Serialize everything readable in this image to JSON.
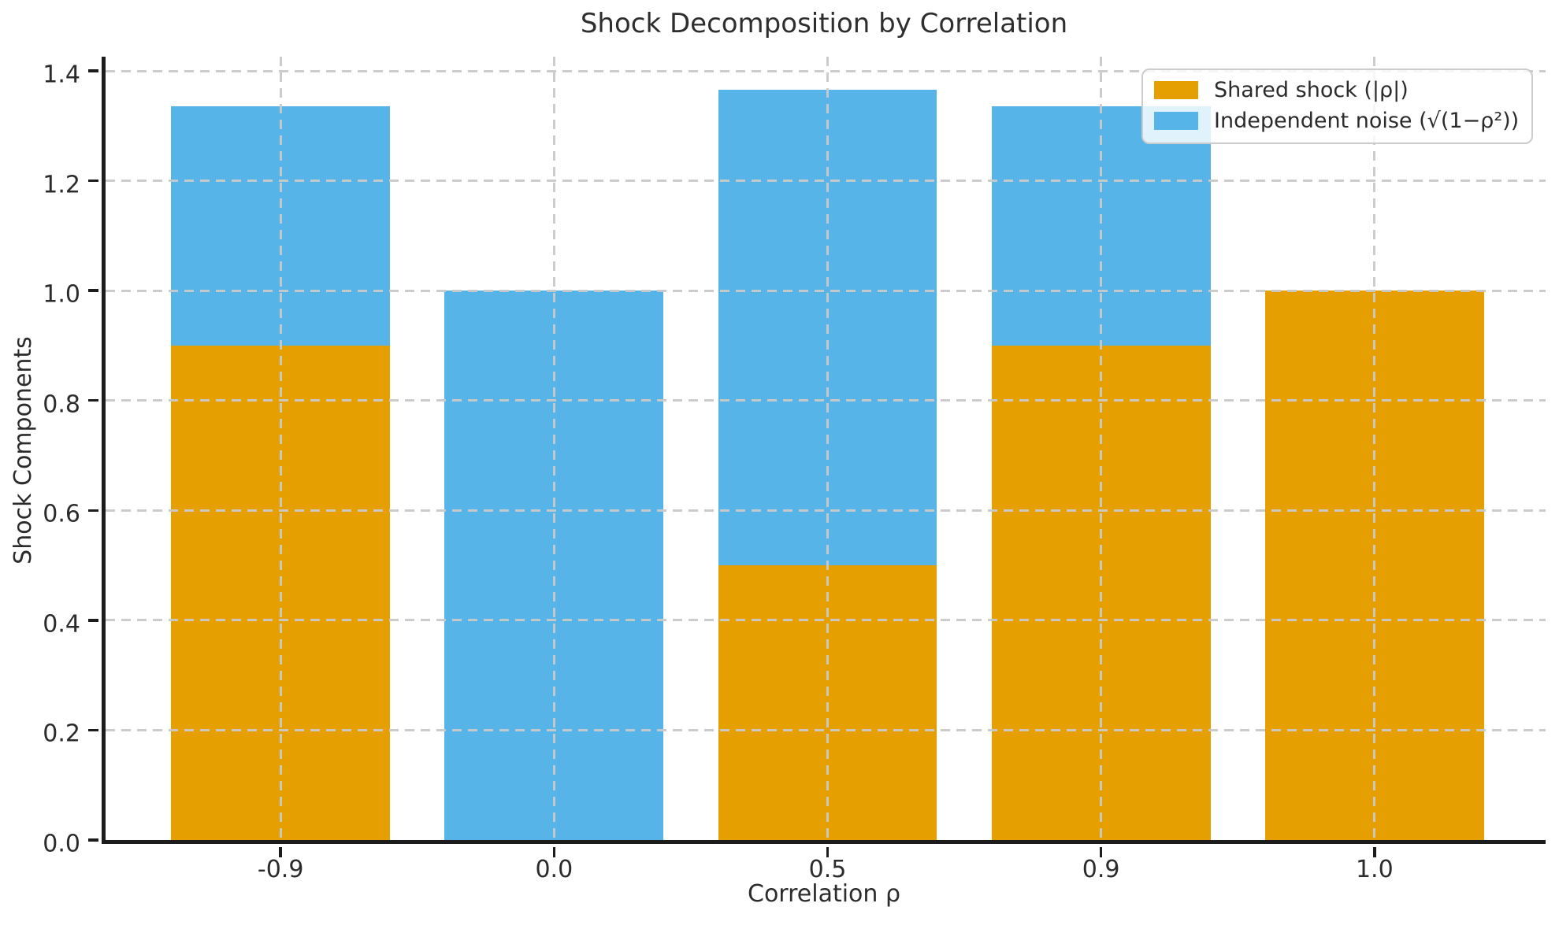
{
  "chart_data": {
    "type": "bar",
    "stacked": true,
    "title": "Shock Decomposition by Correlation",
    "xlabel": "Correlation ρ",
    "ylabel": "Shock Components",
    "categories": [
      "-0.9",
      "0.0",
      "0.5",
      "0.9",
      "1.0"
    ],
    "series": [
      {
        "name": "Shared shock (|ρ|)",
        "color": "#E69F00",
        "values": [
          0.9,
          0.0,
          0.5,
          0.9,
          1.0
        ]
      },
      {
        "name": "Independent noise (√(1−ρ²))",
        "color": "#56B4E9",
        "values": [
          0.4359,
          1.0,
          0.866,
          0.4359,
          0.0
        ]
      }
    ],
    "bar_totals": [
      1.3359,
      1.0,
      1.366,
      1.3359,
      1.0
    ],
    "ylim": [
      0,
      1.433
    ],
    "ytick_values": [
      0.0,
      0.2,
      0.4,
      0.6,
      0.8,
      1.0,
      1.2,
      1.4
    ],
    "ytick_labels": [
      "0.0",
      "0.2",
      "0.4",
      "0.6",
      "0.8",
      "1.0",
      "1.2",
      "1.4"
    ],
    "bar_width_fraction": 0.8,
    "x_margin_units": 0.24,
    "grid": "dashed gray, horizontal at y ticks and vertical at category centers, drawn over bars",
    "legend_position": "upper right",
    "colors": {
      "shared_shock": "#E69F00",
      "independent_noise": "#56B4E9",
      "gridline": "#c9c9c9",
      "spine": "#1c1c1c",
      "text": "#2b2b2b",
      "legend_border": "#cccccc",
      "background": "#ffffff"
    }
  }
}
